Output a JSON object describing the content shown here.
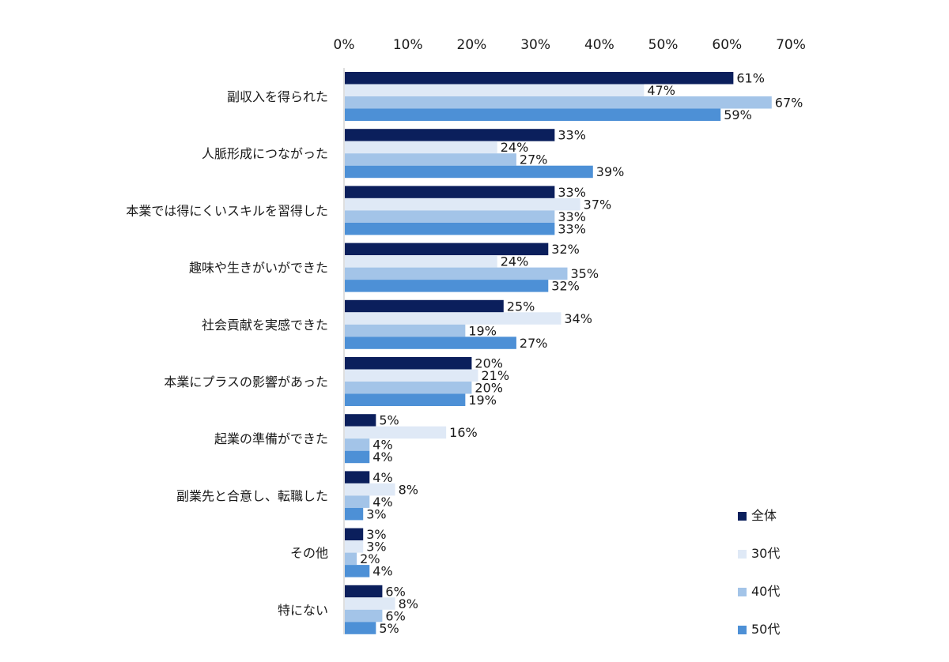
{
  "chart_data": {
    "type": "bar",
    "orientation": "horizontal",
    "title": "",
    "xlabel": "",
    "ylabel": "",
    "xlim": [
      0,
      70
    ],
    "x_ticks": [
      "0%",
      "10%",
      "20%",
      "30%",
      "40%",
      "50%",
      "60%",
      "70%"
    ],
    "x_tick_position": "top",
    "grid": false,
    "legend_position": "bottom-right",
    "value_suffix": "%",
    "categories": [
      "副収入を得られた",
      "人脈形成につながった",
      "本業では得にくいスキルを習得した",
      "趣味や生きがいができた",
      "社会貢献を実感できた",
      "本業にプラスの影響があった",
      "起業の準備ができた",
      "副業先と合意し、転職した",
      "その他",
      "特にない"
    ],
    "series": [
      {
        "name": "全体",
        "color": "#0b1f5c",
        "values": [
          61,
          33,
          33,
          32,
          25,
          20,
          5,
          4,
          3,
          6
        ]
      },
      {
        "name": "30代",
        "color": "#dfe9f6",
        "values": [
          47,
          24,
          37,
          24,
          34,
          21,
          16,
          8,
          3,
          8
        ]
      },
      {
        "name": "40代",
        "color": "#a3c4e8",
        "values": [
          67,
          27,
          33,
          35,
          19,
          20,
          4,
          4,
          2,
          6
        ]
      },
      {
        "name": "50代",
        "color": "#4d90d6",
        "values": [
          59,
          39,
          33,
          32,
          27,
          19,
          4,
          3,
          4,
          5
        ]
      }
    ]
  }
}
